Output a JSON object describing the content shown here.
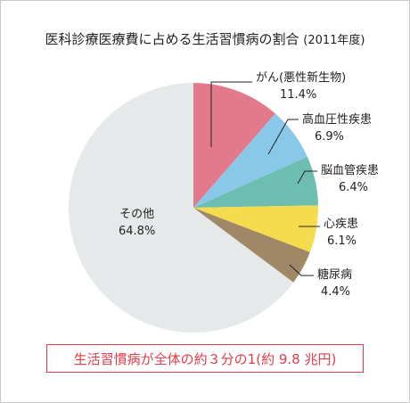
{
  "chart_data": {
    "type": "pie",
    "title": "医科診療医療費に占める生活習慣病の割合",
    "subtitle": "(2011年度)",
    "slices": [
      {
        "label": "がん(悪性新生物)",
        "pct_label": "11.4%",
        "value": 11.4,
        "color": "#e27a8b"
      },
      {
        "label": "高血圧性疾患",
        "pct_label": "6.9%",
        "value": 6.9,
        "color": "#8ac8ea"
      },
      {
        "label": "脳血管疾患",
        "pct_label": "6.4%",
        "value": 6.4,
        "color": "#6dbdb1"
      },
      {
        "label": "心疾患",
        "pct_label": "6.1%",
        "value": 6.1,
        "color": "#f5dc4e"
      },
      {
        "label": "糖尿病",
        "pct_label": "4.4%",
        "value": 4.4,
        "color": "#a08766"
      },
      {
        "label": "その他",
        "pct_label": "64.8%",
        "value": 64.8,
        "color": "#e5e9ea"
      }
    ],
    "start": "12 o'clock",
    "direction": "clockwise"
  },
  "note": "生活習慣病が全体の約３分の1(約 9.8 兆円)"
}
